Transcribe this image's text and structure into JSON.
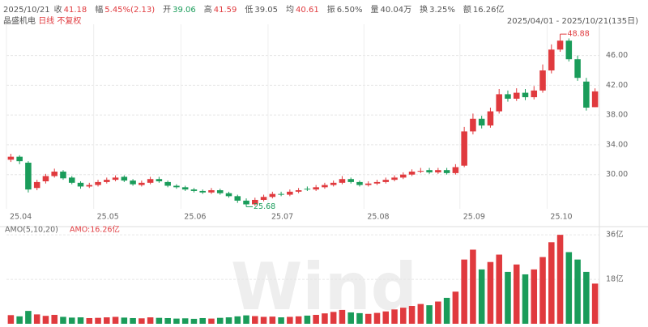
{
  "header": {
    "date": "2025/10/21",
    "fields": [
      {
        "label": "收",
        "value": "41.18",
        "color": "#e03a3e"
      },
      {
        "label": "幅",
        "value": "5.45%(2.13)",
        "color": "#e03a3e"
      },
      {
        "label": "开",
        "value": "39.06",
        "color": "#1a9c5a"
      },
      {
        "label": "高",
        "value": "41.59",
        "color": "#e03a3e"
      },
      {
        "label": "低",
        "value": "39.05",
        "color": "#555555"
      },
      {
        "label": "均",
        "value": "40.61",
        "color": "#e03a3e"
      },
      {
        "label": "振",
        "value": "6.50%",
        "color": "#555555"
      },
      {
        "label": "量",
        "value": "40.04万",
        "color": "#555555"
      },
      {
        "label": "换",
        "value": "3.25%",
        "color": "#555555"
      },
      {
        "label": "额",
        "value": "16.26亿",
        "color": "#555555"
      }
    ],
    "name": "晶盛机电",
    "period": "日线",
    "adjust": "不复权",
    "range": "2025/04/01 - 2025/10/21(135日)"
  },
  "chart_data": [
    {
      "type": "candlestick",
      "categories": [
        "25.04",
        null,
        null,
        null,
        null,
        null,
        null,
        null,
        null,
        null,
        "25.05",
        null,
        null,
        null,
        null,
        null,
        null,
        null,
        null,
        null,
        "25.06",
        null,
        null,
        null,
        null,
        null,
        null,
        null,
        null,
        null,
        "25.07",
        null,
        null,
        null,
        null,
        null,
        null,
        null,
        null,
        null,
        null,
        "25.08",
        null,
        null,
        null,
        null,
        null,
        null,
        null,
        null,
        null,
        null,
        "25.09",
        null,
        null,
        null,
        null,
        null,
        null,
        null,
        null,
        null,
        "25.10",
        null,
        null,
        null,
        null,
        null
      ],
      "open": [
        32.0,
        32.4,
        31.6,
        28.2,
        29.1,
        29.8,
        30.4,
        29.6,
        28.9,
        28.4,
        28.6,
        29.0,
        29.3,
        29.7,
        29.2,
        28.6,
        28.9,
        29.4,
        29.0,
        28.5,
        28.3,
        28.0,
        27.8,
        27.6,
        27.9,
        27.5,
        27.1,
        26.5,
        26.0,
        26.6,
        27.0,
        27.4,
        27.3,
        27.7,
        28.1,
        28.0,
        28.3,
        28.6,
        28.9,
        29.4,
        29.0,
        28.6,
        28.8,
        29.0,
        29.3,
        29.6,
        30.0,
        30.4,
        30.6,
        30.3,
        30.6,
        30.2,
        31.2,
        35.8,
        37.5,
        36.6,
        38.5,
        40.8,
        40.2,
        41.0,
        40.4,
        41.3,
        44.0,
        46.8,
        48.0,
        45.5,
        42.5,
        39.06
      ],
      "high": [
        32.8,
        32.6,
        31.8,
        29.3,
        30.1,
        30.8,
        30.6,
        29.8,
        29.1,
        28.9,
        29.3,
        29.6,
        29.9,
        29.9,
        29.4,
        29.2,
        29.7,
        29.7,
        29.2,
        28.7,
        28.5,
        28.2,
        28.0,
        28.2,
        28.1,
        27.7,
        27.3,
        26.8,
        26.9,
        27.3,
        27.7,
        27.7,
        28.0,
        28.2,
        28.4,
        28.6,
        28.9,
        29.2,
        29.8,
        29.6,
        29.2,
        29.1,
        29.3,
        29.6,
        29.9,
        30.3,
        30.7,
        30.9,
        30.9,
        30.9,
        30.9,
        31.4,
        36.4,
        38.2,
        37.9,
        39.0,
        41.5,
        41.3,
        41.6,
        41.5,
        41.9,
        44.8,
        47.5,
        48.88,
        48.3,
        46.0,
        43.0,
        41.59
      ],
      "low": [
        31.7,
        31.4,
        27.6,
        27.9,
        28.8,
        29.6,
        29.3,
        28.7,
        28.1,
        28.2,
        28.4,
        28.8,
        29.1,
        29.0,
        28.5,
        28.4,
        28.7,
        28.9,
        28.3,
        28.1,
        27.8,
        27.6,
        27.4,
        27.4,
        27.3,
        26.9,
        26.2,
        25.68,
        25.8,
        26.4,
        26.8,
        27.1,
        27.1,
        27.5,
        27.8,
        27.8,
        28.1,
        28.4,
        28.7,
        28.8,
        28.4,
        28.4,
        28.6,
        28.8,
        29.1,
        29.4,
        29.8,
        30.2,
        30.1,
        30.1,
        30.0,
        30.0,
        31.0,
        35.4,
        36.2,
        36.3,
        38.2,
        39.8,
        39.9,
        40.0,
        40.1,
        41.0,
        43.6,
        46.5,
        45.2,
        42.6,
        38.6,
        39.05
      ],
      "close": [
        32.4,
        31.8,
        28.0,
        29.0,
        29.8,
        30.4,
        29.5,
        28.9,
        28.4,
        28.6,
        29.0,
        29.3,
        29.6,
        29.2,
        28.7,
        28.9,
        29.4,
        29.1,
        28.5,
        28.3,
        28.0,
        27.8,
        27.6,
        27.9,
        27.5,
        27.1,
        26.5,
        26.0,
        26.6,
        27.0,
        27.4,
        27.3,
        27.7,
        27.9,
        28.0,
        28.3,
        28.6,
        28.9,
        29.4,
        29.0,
        28.6,
        28.8,
        29.0,
        29.3,
        29.6,
        30.0,
        30.4,
        30.5,
        30.3,
        30.6,
        30.2,
        31.0,
        35.8,
        37.5,
        36.6,
        38.5,
        40.8,
        40.2,
        41.0,
        40.4,
        41.3,
        44.0,
        46.8,
        48.0,
        45.5,
        43.0,
        39.0,
        41.18
      ],
      "ylim": [
        25.4,
        50.2
      ],
      "yticks": [
        {
          "value": 30,
          "label": "30.00"
        },
        {
          "value": 34,
          "label": "34.00"
        },
        {
          "value": 38,
          "label": "38.00"
        },
        {
          "value": 42,
          "label": "42.00"
        },
        {
          "value": 46,
          "label": "46.00"
        }
      ],
      "max_label": "48.88",
      "min_label": "25.68",
      "up_color": "#e03a3e",
      "down_color": "#1a9c5a",
      "grid": true
    },
    {
      "type": "bar",
      "title": "AMO(5,10,20)",
      "subtitle": "AMO:16.26亿",
      "watermark": "Wind",
      "values": [
        3.5,
        3.0,
        5.2,
        3.8,
        3.2,
        3.6,
        2.8,
        2.5,
        2.6,
        2.3,
        2.4,
        2.6,
        2.8,
        2.5,
        2.3,
        2.2,
        2.6,
        2.4,
        2.3,
        2.1,
        2.2,
        2.0,
        2.3,
        2.1,
        2.4,
        2.6,
        3.0,
        3.4,
        3.1,
        2.8,
        2.9,
        2.6,
        2.8,
        3.0,
        3.3,
        3.6,
        4.2,
        4.8,
        5.6,
        4.6,
        4.3,
        4.0,
        4.4,
        5.0,
        5.8,
        6.5,
        7.2,
        8.0,
        7.5,
        9.0,
        10.5,
        13.0,
        26.0,
        30.0,
        22.0,
        25.0,
        28.0,
        21.0,
        24.0,
        20.0,
        22.0,
        27.0,
        33.0,
        36.0,
        29.0,
        26.0,
        21.0,
        16.26
      ],
      "ylim": [
        0,
        36.7
      ],
      "yticks": [
        {
          "value": 18,
          "label": "18亿"
        },
        {
          "value": 36,
          "label": "36亿"
        }
      ],
      "grid": true
    }
  ]
}
